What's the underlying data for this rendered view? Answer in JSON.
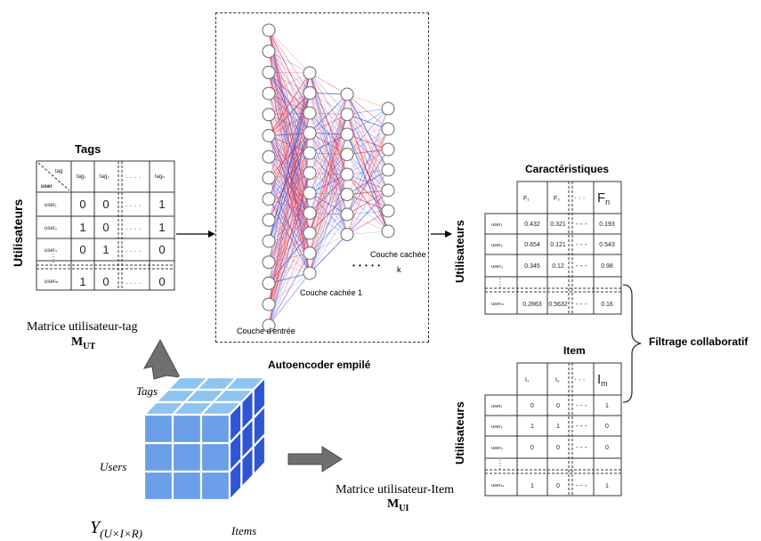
{
  "tag_matrix": {
    "title": "Tags",
    "side_label": "Utilisateurs",
    "corner_top": "tag",
    "corner_bottom": "user",
    "col_headers": [
      "tag₁",
      "tag₂",
      "tagₙ"
    ],
    "row_headers": [
      "user₁",
      "user₂",
      "user₃",
      "userₘ"
    ],
    "rows": [
      [
        "0",
        "0",
        "1"
      ],
      [
        "1",
        "0",
        "1"
      ],
      [
        "0",
        "1",
        "0"
      ],
      [
        "1",
        "0",
        "0"
      ]
    ],
    "dots": "· · · ·",
    "caption": "Matrice utilisateur-tag",
    "symbol": "M",
    "symbol_sub": "UT"
  },
  "autoencoder": {
    "caption": "Autoencoder empilé",
    "input_label": "Couche d'entrée",
    "hidden1_label": "Couche cachée 1",
    "hiddenk_label": "Couche cachée",
    "hiddenk_index": "k",
    "layer_dots": "• • • • •"
  },
  "features_matrix": {
    "title": "Caractéristiques",
    "side_label": "Utilisateurs",
    "col_headers": [
      "F₁",
      "F₂",
      "F"
    ],
    "last_col_sub": "n",
    "row_headers": [
      "user₁",
      "user₂",
      "user₃",
      "userₘ"
    ],
    "rows": [
      [
        "0.432",
        "0.321",
        "0.193"
      ],
      [
        "0.654",
        "0.121",
        "0.543"
      ],
      [
        "0.345",
        "0.12",
        "0.98"
      ],
      [
        "0.2863",
        "0.5632",
        "0.16"
      ]
    ]
  },
  "item_matrix": {
    "title": "Item",
    "side_label": "Utilisateurs",
    "col_headers": [
      "I₁",
      "I₂",
      "I"
    ],
    "last_col_sub": "m",
    "row_headers": [
      "user₁",
      "user₂",
      "user₃",
      "userₘ"
    ],
    "rows": [
      [
        "0",
        "0",
        "1"
      ],
      [
        "1",
        "1",
        "0"
      ],
      [
        "0",
        "0",
        "0"
      ],
      [
        "1",
        "0",
        "1"
      ]
    ],
    "caption": "Matrice utilisateur-Item",
    "symbol": "M",
    "symbol_sub": "UI"
  },
  "filtering_label": "Filtrage collaboratif",
  "cube": {
    "tags_label": "Tags",
    "users_label": "Users",
    "items_label": "Items",
    "formula_main": "Y",
    "formula_sub": "(U×I×R)",
    "colors": {
      "top": "#8ec4f0",
      "left": "#6b9ee8",
      "right": "#2f55d6"
    }
  }
}
